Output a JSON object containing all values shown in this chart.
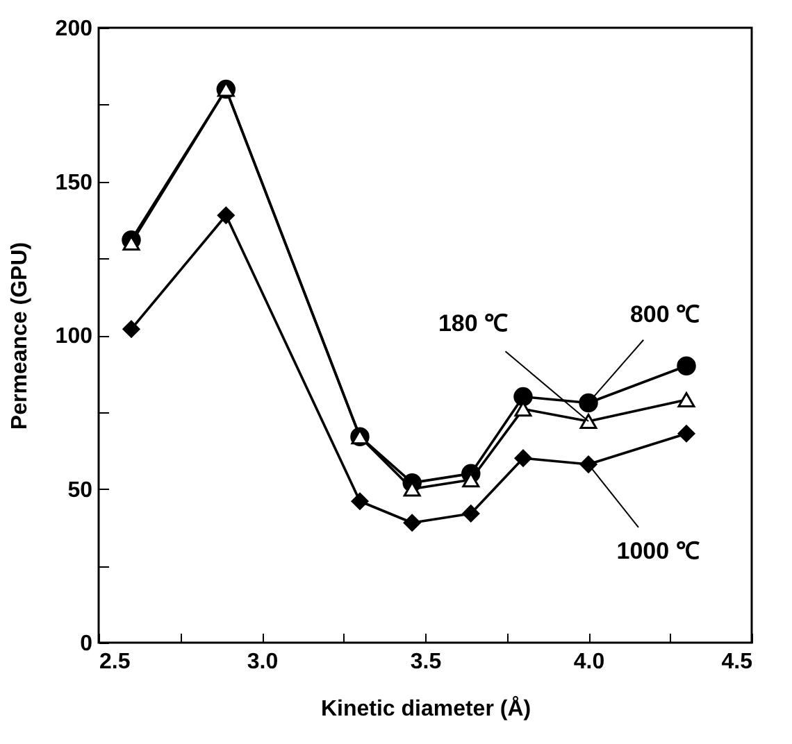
{
  "chart_data": {
    "type": "line",
    "xlabel": "Kinetic diameter (Å)",
    "ylabel": "Permeance (GPU)",
    "x": [
      2.6,
      2.89,
      3.3,
      3.46,
      3.64,
      3.8,
      4.0,
      4.3
    ],
    "series": [
      {
        "name": "800 ℃",
        "color": "#000000",
        "marker": "circle",
        "values": [
          131,
          180,
          67,
          52,
          55,
          80,
          78,
          90
        ]
      },
      {
        "name": "180 ℃",
        "color": "#000000",
        "marker": "triangle",
        "values": [
          130,
          180,
          67,
          50,
          53,
          76,
          72,
          79
        ]
      },
      {
        "name": "1000 ℃",
        "color": "#000000",
        "marker": "diamond",
        "values": [
          102,
          139,
          46,
          39,
          42,
          60,
          58,
          68
        ]
      }
    ],
    "xlim": [
      2.5,
      4.5
    ],
    "xticks": [
      2.5,
      {
        "value": 2.75,
        "label": null
      },
      {
        "value": 3,
        "label": "3.0"
      },
      {
        "value": 3.25,
        "label": null
      },
      3.5,
      {
        "value": 3.75,
        "label": null
      },
      {
        "value": 4,
        "label": "4.0"
      },
      {
        "value": 4.25,
        "label": null
      },
      4.5
    ],
    "ylim": [
      0,
      200
    ],
    "yticks": [
      0,
      {
        "value": 25,
        "label": null
      },
      50,
      {
        "value": 75,
        "label": null
      },
      100,
      {
        "value": 125,
        "label": null
      },
      150,
      {
        "value": 175,
        "label": null
      },
      200
    ],
    "grid": false,
    "line_style": "solid"
  }
}
